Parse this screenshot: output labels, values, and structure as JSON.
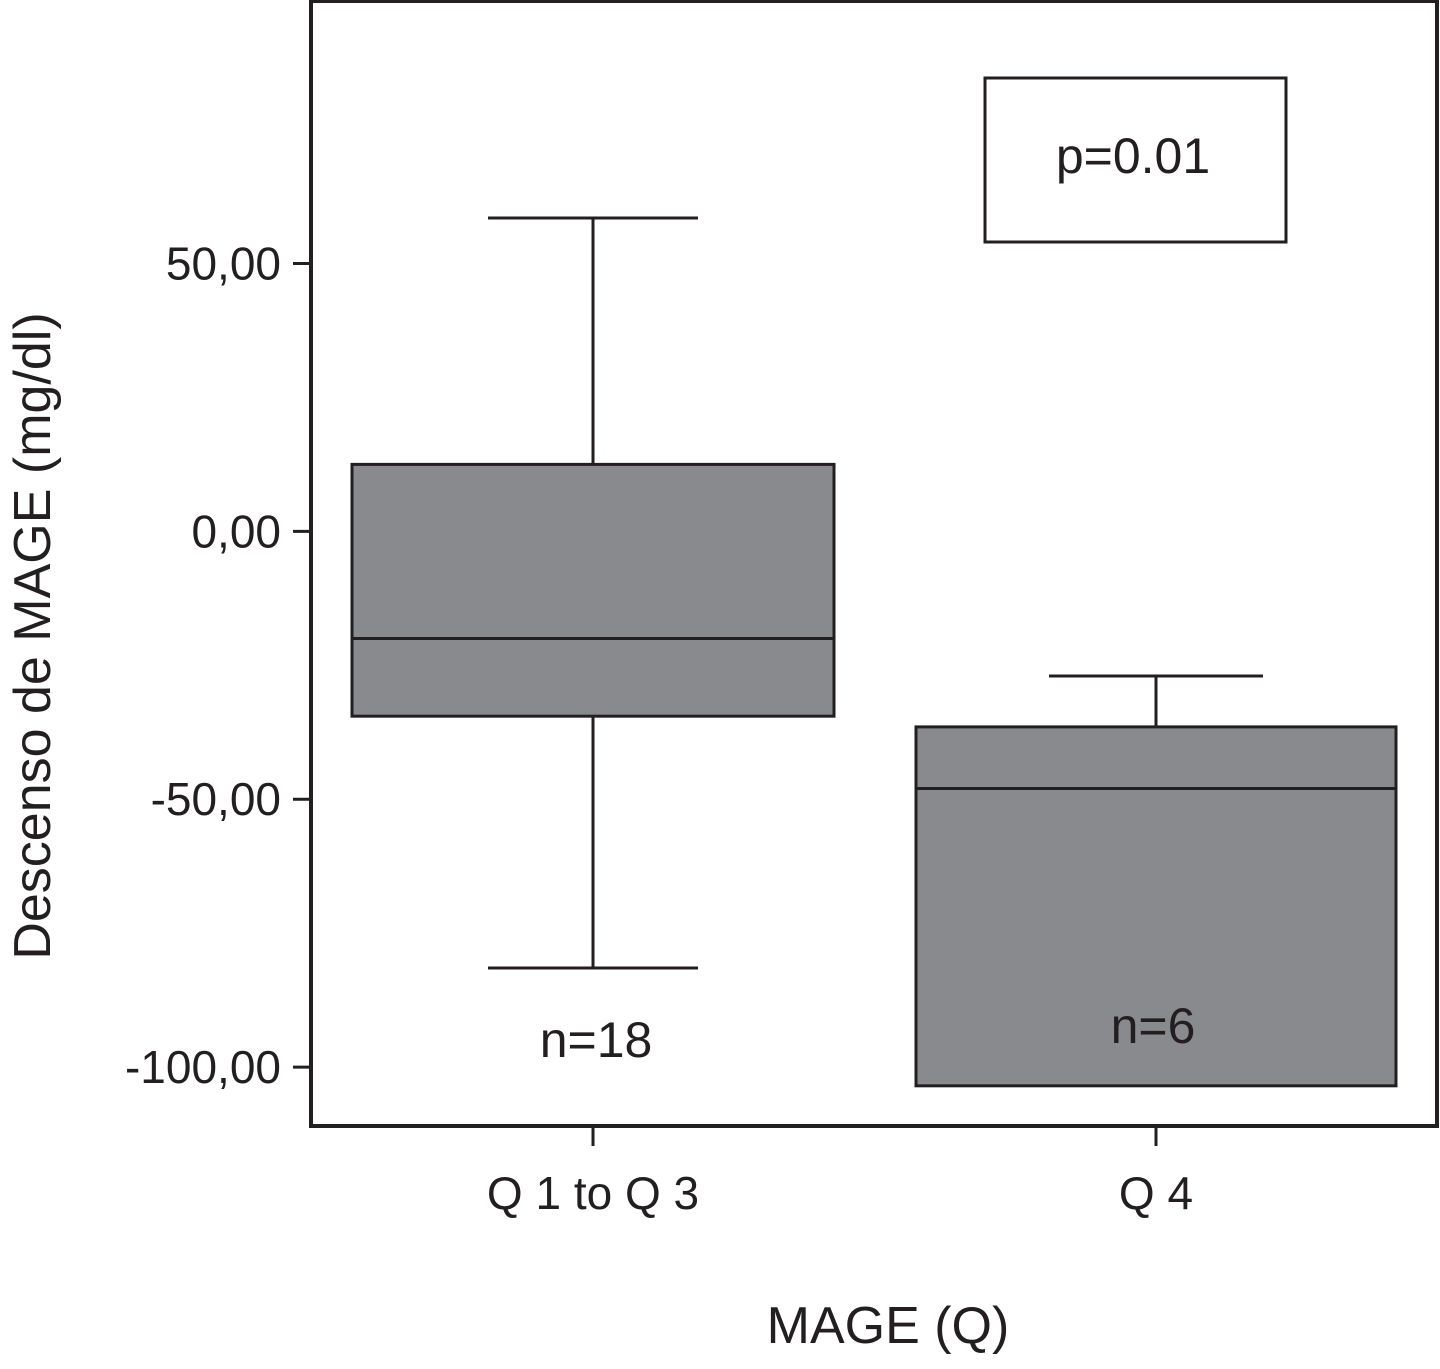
{
  "chart_data": {
    "type": "boxplot",
    "xlabel": "MAGE (Q)",
    "ylabel": "Descenso de MAGE (mg/dl)",
    "ylim": [
      -111,
      99
    ],
    "yticks": [
      {
        "value": 50,
        "label": "50,00"
      },
      {
        "value": 0,
        "label": "0,00"
      },
      {
        "value": -50,
        "label": "-50,00"
      },
      {
        "value": -100,
        "label": "-100,00"
      }
    ],
    "categories": [
      "Q 1 to Q 3",
      "Q 4"
    ],
    "boxes": [
      {
        "category": "Q 1 to Q 3",
        "whisker_low": -81.5,
        "q1": -34.5,
        "median": -20,
        "q3": 12.5,
        "whisker_high": 58.5,
        "n_label": "n=18"
      },
      {
        "category": "Q 4",
        "whisker_low": -103.5,
        "q1": -103.5,
        "median": -48,
        "q3": -36.5,
        "whisker_high": -27,
        "n_label": "n=6"
      }
    ],
    "annotation": "p=0.01",
    "colors": {
      "box_fill": "#898a8d",
      "line": "#231f20"
    }
  }
}
